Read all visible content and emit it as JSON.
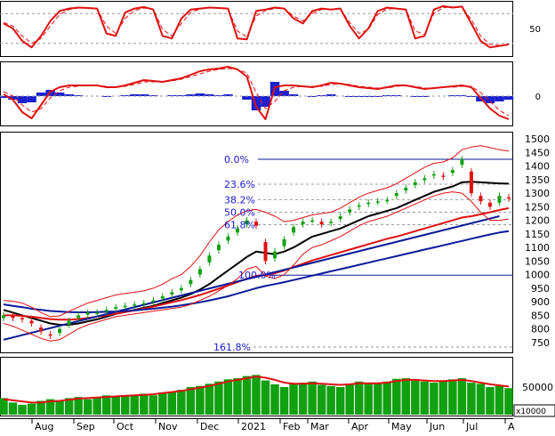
{
  "colors": {
    "grid": "#9a9a9a",
    "red": "#e01010",
    "black": "#000000",
    "navy": "#0a1a9a",
    "fibo_text": "#1a1ad0",
    "macd_hist": "#1a20d0",
    "volume": "#10a010",
    "candle_up": "#10a010",
    "candle_down": "#e01010"
  },
  "chart_data": [
    {
      "panel": "stochastic",
      "type": "line",
      "y_ticks": [
        "50"
      ],
      "ylim": [
        0,
        100
      ],
      "guide_levels": [
        80,
        20
      ],
      "series": [
        {
          "role": "%K",
          "style": "solid",
          "color": "#e01010",
          "y": [
            60,
            50,
            25,
            12,
            35,
            65,
            85,
            90,
            92,
            91,
            90,
            40,
            35,
            82,
            90,
            93,
            88,
            35,
            30,
            70,
            88,
            90,
            92,
            91,
            90,
            30,
            28,
            85,
            88,
            92,
            90,
            70,
            60,
            85,
            90,
            88,
            90,
            55,
            30,
            50,
            85,
            92,
            90,
            88,
            30,
            35,
            88,
            95,
            92,
            94,
            60,
            25,
            12,
            15,
            18
          ]
        },
        {
          "role": "%D",
          "style": "dashed",
          "color": "#e01010",
          "y": [
            62,
            55,
            35,
            20,
            30,
            55,
            78,
            88,
            91,
            91,
            89,
            55,
            40,
            70,
            86,
            91,
            89,
            48,
            35,
            60,
            82,
            89,
            91,
            91,
            89,
            45,
            33,
            75,
            86,
            90,
            90,
            75,
            65,
            80,
            88,
            89,
            89,
            62,
            40,
            48,
            78,
            89,
            90,
            89,
            45,
            38,
            80,
            92,
            93,
            93,
            68,
            35,
            18,
            16,
            17
          ]
        }
      ]
    },
    {
      "panel": "macd",
      "type": "line",
      "y_ticks": [
        "0"
      ],
      "zero_line": 0,
      "series": [
        {
          "role": "macd",
          "style": "solid",
          "color": "#e01010",
          "y": [
            2,
            -4,
            -18,
            -25,
            -10,
            5,
            10,
            12,
            12,
            12,
            12,
            10,
            10,
            12,
            15,
            18,
            17,
            16,
            18,
            20,
            24,
            28,
            30,
            31,
            33,
            30,
            22,
            -12,
            -26,
            10,
            12,
            12,
            11,
            10,
            12,
            15,
            14,
            12,
            10,
            9,
            8,
            10,
            12,
            12,
            10,
            8,
            9,
            10,
            11,
            12,
            10,
            -2,
            -14,
            -22,
            -26
          ]
        },
        {
          "role": "signal",
          "style": "dashed",
          "color": "#e01010",
          "y": [
            5,
            0,
            -10,
            -18,
            -14,
            -2,
            6,
            10,
            11,
            12,
            12,
            11,
            10,
            11,
            13,
            16,
            16,
            16,
            17,
            19,
            22,
            25,
            28,
            30,
            31,
            30,
            26,
            4,
            -14,
            -6,
            6,
            10,
            11,
            11,
            11,
            13,
            14,
            13,
            11,
            10,
            9,
            9,
            11,
            12,
            11,
            9,
            9,
            10,
            10,
            11,
            11,
            4,
            -6,
            -16,
            -22
          ]
        },
        {
          "role": "histogram",
          "style": "bars",
          "color": "#1a20d0",
          "y": [
            -2,
            -4,
            -8,
            -7,
            4,
            7,
            4,
            2,
            1,
            0,
            0,
            -1,
            0,
            1,
            2,
            2,
            1,
            0,
            1,
            1,
            2,
            3,
            2,
            1,
            2,
            0,
            -4,
            -16,
            -12,
            16,
            6,
            2,
            0,
            -1,
            1,
            2,
            0,
            -1,
            -1,
            -1,
            -1,
            1,
            1,
            0,
            -1,
            -1,
            0,
            0,
            1,
            1,
            -1,
            -6,
            -8,
            -6,
            -4
          ]
        }
      ]
    },
    {
      "panel": "price",
      "type": "candlestick",
      "x_ticks": [
        "Aug",
        "Sep",
        "Oct",
        "Nov",
        "Dec",
        "2021",
        "Feb",
        "Mar",
        "Apr",
        "May",
        "Jun",
        "Jul",
        "A"
      ],
      "y_ticks": [
        "1500",
        "1450",
        "1400",
        "1350",
        "1300",
        "1250",
        "1200",
        "1150",
        "1100",
        "1050",
        "1000",
        "950",
        "900",
        "850",
        "800",
        "750"
      ],
      "ylim": [
        720,
        1520
      ],
      "close": [
        850,
        840,
        835,
        820,
        790,
        775,
        800,
        830,
        850,
        860,
        860,
        870,
        880,
        885,
        890,
        895,
        905,
        920,
        935,
        950,
        980,
        1020,
        1070,
        1110,
        1140,
        1170,
        1200,
        1180,
        1050,
        1085,
        1130,
        1175,
        1195,
        1200,
        1185,
        1195,
        1215,
        1240,
        1255,
        1265,
        1270,
        1275,
        1300,
        1320,
        1340,
        1355,
        1370,
        1360,
        1385,
        1425,
        1300,
        1270,
        1250,
        1290,
        1280
      ],
      "open": [
        840,
        848,
        840,
        830,
        805,
        780,
        785,
        815,
        840,
        852,
        858,
        864,
        874,
        882,
        886,
        892,
        900,
        912,
        927,
        942,
        965,
        1000,
        1045,
        1090,
        1125,
        1155,
        1185,
        1195,
        1120,
        1060,
        1105,
        1155,
        1185,
        1200,
        1195,
        1190,
        1205,
        1230,
        1250,
        1260,
        1268,
        1272,
        1290,
        1310,
        1330,
        1348,
        1365,
        1365,
        1375,
        1405,
        1380,
        1290,
        1265,
        1265,
        1285
      ],
      "fibonacci": [
        {
          "label": "0.0%",
          "value": 1425
        },
        {
          "label": "23.6%",
          "value": 1333
        },
        {
          "label": "38.2%",
          "value": 1276
        },
        {
          "label": "50.0%",
          "value": 1230
        },
        {
          "label": "61.8%",
          "value": 1184
        },
        {
          "label": "100.0%",
          "value": 998
        },
        {
          "label": "161.8%",
          "value": 733
        }
      ],
      "series": [
        {
          "role": "ma-short",
          "style": "solid",
          "color": "#000000",
          "y": [
            870,
            860,
            850,
            840,
            830,
            820,
            815,
            815,
            820,
            828,
            835,
            845,
            855,
            862,
            870,
            878,
            885,
            895,
            905,
            915,
            928,
            945,
            965,
            990,
            1015,
            1040,
            1065,
            1085,
            1080,
            1075,
            1085,
            1100,
            1120,
            1140,
            1150,
            1160,
            1170,
            1185,
            1200,
            1215,
            1225,
            1235,
            1245,
            1260,
            1275,
            1290,
            1305,
            1315,
            1325,
            1340,
            1342,
            1340,
            1338,
            1336,
            1335
          ]
        },
        {
          "role": "ma-long",
          "style": "solid",
          "color": "#e01010",
          "y": [
            850,
            850,
            848,
            845,
            840,
            836,
            834,
            834,
            836,
            840,
            845,
            850,
            856,
            862,
            868,
            875,
            882,
            890,
            898,
            906,
            915,
            925,
            936,
            948,
            960,
            972,
            985,
            995,
            998,
            1005,
            1015,
            1028,
            1040,
            1052,
            1062,
            1072,
            1082,
            1092,
            1102,
            1112,
            1122,
            1132,
            1140,
            1150,
            1160,
            1170,
            1180,
            1190,
            1200,
            1210,
            1215,
            1222,
            1230,
            1238,
            1245
          ]
        },
        {
          "role": "ma-200",
          "style": "solid",
          "color": "#0a1a9a",
          "y": [
            890,
            885,
            880,
            874,
            870,
            866,
            864,
            862,
            861,
            861,
            862,
            863,
            864,
            866,
            868,
            871,
            874,
            878,
            882,
            887,
            892,
            898,
            905,
            912,
            920,
            930,
            940,
            950,
            958,
            965,
            972,
            980,
            988,
            996,
            1004,
            1012,
            1020,
            1028,
            1036,
            1044,
            1052,
            1060,
            1068,
            1076,
            1084,
            1092,
            1100,
            1108,
            1116,
            1124,
            1132,
            1140,
            1148,
            1155,
            1160
          ]
        },
        {
          "role": "trendline",
          "style": "solid",
          "color": "#0a1a9a",
          "x": [
            0,
            53
          ],
          "y": [
            760,
            1215
          ]
        },
        {
          "role": "bollinger-upper",
          "style": "solid",
          "color": "#e01010",
          "y": [
            905,
            902,
            895,
            880,
            860,
            845,
            848,
            865,
            880,
            895,
            905,
            915,
            925,
            930,
            935,
            940,
            950,
            965,
            985,
            1000,
            1030,
            1070,
            1120,
            1165,
            1195,
            1220,
            1235,
            1240,
            1230,
            1215,
            1195,
            1200,
            1210,
            1220,
            1225,
            1230,
            1245,
            1265,
            1285,
            1300,
            1310,
            1320,
            1335,
            1355,
            1375,
            1395,
            1410,
            1415,
            1430,
            1460,
            1470,
            1475,
            1468,
            1460,
            1455
          ]
        },
        {
          "role": "bollinger-lower",
          "style": "solid",
          "color": "#e01010",
          "y": [
            820,
            810,
            795,
            780,
            765,
            755,
            760,
            780,
            800,
            815,
            825,
            835,
            845,
            850,
            855,
            860,
            865,
            870,
            875,
            880,
            890,
            905,
            920,
            940,
            960,
            985,
            1020,
            1030,
            995,
            985,
            1000,
            1035,
            1075,
            1100,
            1110,
            1125,
            1140,
            1160,
            1180,
            1195,
            1205,
            1215,
            1230,
            1245,
            1260,
            1275,
            1290,
            1300,
            1305,
            1300,
            1270,
            1230,
            1200,
            1200,
            1205
          ]
        }
      ]
    },
    {
      "panel": "volume",
      "type": "bar",
      "y_ticks": [
        "50000"
      ],
      "multiplier_label": "x10000",
      "ylim": [
        0,
        100000
      ],
      "values": [
        30000,
        22000,
        18000,
        20000,
        25000,
        28000,
        26000,
        30000,
        32000,
        28000,
        30000,
        35000,
        33000,
        34000,
        36000,
        38000,
        35000,
        40000,
        42000,
        45000,
        50000,
        52000,
        56000,
        60000,
        64000,
        66000,
        70000,
        72000,
        62000,
        55000,
        50000,
        56000,
        58000,
        60000,
        54000,
        52000,
        50000,
        55000,
        60000,
        58000,
        56000,
        60000,
        65000,
        66000,
        62000,
        60000,
        58000,
        62000,
        64000,
        66000,
        58000,
        56000,
        50000,
        52000,
        48000
      ],
      "series": [
        {
          "role": "volume-ma",
          "style": "solid",
          "color": "#e01010",
          "y": [
            28000,
            26000,
            24000,
            22000,
            22000,
            24000,
            25000,
            27000,
            29000,
            30000,
            31000,
            32000,
            33000,
            34000,
            35000,
            36000,
            37000,
            39000,
            41000,
            43000,
            46000,
            49000,
            52000,
            56000,
            60000,
            63000,
            66000,
            69000,
            67000,
            63000,
            58000,
            56000,
            56000,
            57000,
            56000,
            55000,
            54000,
            55000,
            57000,
            57000,
            57000,
            58000,
            61000,
            63000,
            63000,
            62000,
            61000,
            61000,
            62000,
            63000,
            61000,
            58000,
            55000,
            53000,
            51000
          ]
        }
      ]
    }
  ]
}
